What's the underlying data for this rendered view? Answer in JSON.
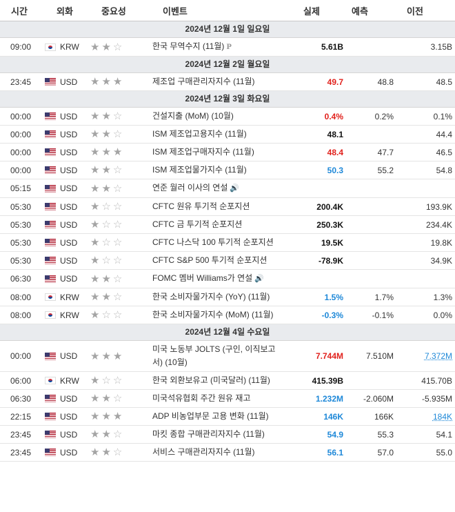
{
  "headers": {
    "time": "시간",
    "currency": "외화",
    "importance": "중요성",
    "event": "이벤트",
    "actual": "실제",
    "forecast": "예측",
    "previous": "이전"
  },
  "colors": {
    "positive": "#1e88d8",
    "negative": "#e1211c",
    "date_bg": "#e9ebee"
  },
  "sections": [
    {
      "date": "2024년 12월 1일 일요일",
      "events": [
        {
          "time": "09:00",
          "currency": "KRW",
          "flag": "kr-flag-icon",
          "stars": 2,
          "event": "한국 무역수지 (11월)",
          "badge": "P",
          "actual": "5.61B",
          "actual_color": "black",
          "forecast": "",
          "previous": "3.15B"
        }
      ]
    },
    {
      "date": "2024년 12월 2일 월요일",
      "events": [
        {
          "time": "23:45",
          "currency": "USD",
          "flag": "us-flag-icon",
          "stars": 3,
          "event": "제조업 구매관리자지수 (11월)",
          "actual": "49.7",
          "actual_color": "red",
          "forecast": "48.8",
          "previous": "48.5"
        }
      ]
    },
    {
      "date": "2024년 12월 3일 화요일",
      "events": [
        {
          "time": "00:00",
          "currency": "USD",
          "flag": "us-flag-icon",
          "stars": 2,
          "event": "건설지출 (MoM) (10월)",
          "actual": "0.4%",
          "actual_color": "red",
          "forecast": "0.2%",
          "previous": "0.1%"
        },
        {
          "time": "00:00",
          "currency": "USD",
          "flag": "us-flag-icon",
          "stars": 2,
          "event": "ISM 제조업고용지수 (11월)",
          "actual": "48.1",
          "actual_color": "black",
          "forecast": "",
          "previous": "44.4"
        },
        {
          "time": "00:00",
          "currency": "USD",
          "flag": "us-flag-icon",
          "stars": 3,
          "event": "ISM 제조업구매자지수 (11월)",
          "actual": "48.4",
          "actual_color": "red",
          "forecast": "47.7",
          "previous": "46.5"
        },
        {
          "time": "00:00",
          "currency": "USD",
          "flag": "us-flag-icon",
          "stars": 2,
          "event": "ISM 제조업물가지수 (11월)",
          "actual": "50.3",
          "actual_color": "blue",
          "forecast": "55.2",
          "previous": "54.8"
        },
        {
          "time": "05:15",
          "currency": "USD",
          "flag": "us-flag-icon",
          "stars": 2,
          "event": "연준 월러 이사의 연설",
          "speech": true,
          "actual": "",
          "actual_color": "black",
          "forecast": "",
          "previous": ""
        },
        {
          "time": "05:30",
          "currency": "USD",
          "flag": "us-flag-icon",
          "stars": 1,
          "event": "CFTC 원유 투기적 순포지션",
          "actual": "200.4K",
          "actual_color": "black",
          "forecast": "",
          "previous": "193.9K"
        },
        {
          "time": "05:30",
          "currency": "USD",
          "flag": "us-flag-icon",
          "stars": 1,
          "event": "CFTC 금 투기적 순포지션",
          "actual": "250.3K",
          "actual_color": "black",
          "forecast": "",
          "previous": "234.4K"
        },
        {
          "time": "05:30",
          "currency": "USD",
          "flag": "us-flag-icon",
          "stars": 1,
          "event": "CFTC 나스닥 100 투기적 순포지션",
          "actual": "19.5K",
          "actual_color": "black",
          "forecast": "",
          "previous": "19.8K"
        },
        {
          "time": "05:30",
          "currency": "USD",
          "flag": "us-flag-icon",
          "stars": 1,
          "event": "CFTC S&P 500 투기적 순포지션",
          "actual": "-78.9K",
          "actual_color": "black",
          "forecast": "",
          "previous": "34.9K"
        },
        {
          "time": "06:30",
          "currency": "USD",
          "flag": "us-flag-icon",
          "stars": 2,
          "event": "FOMC 멤버 Williams가 연설",
          "speech": true,
          "actual": "",
          "actual_color": "black",
          "forecast": "",
          "previous": ""
        },
        {
          "time": "08:00",
          "currency": "KRW",
          "flag": "kr-flag-icon",
          "stars": 2,
          "event": "한국 소비자물가지수 (YoY) (11월)",
          "actual": "1.5%",
          "actual_color": "blue",
          "forecast": "1.7%",
          "previous": "1.3%"
        },
        {
          "time": "08:00",
          "currency": "KRW",
          "flag": "kr-flag-icon",
          "stars": 1,
          "event": "한국 소비자물가지수 (MoM) (11월)",
          "actual": "-0.3%",
          "actual_color": "blue",
          "forecast": "-0.1%",
          "previous": "0.0%"
        }
      ]
    },
    {
      "date": "2024년 12월 4일 수요일",
      "events": [
        {
          "time": "00:00",
          "currency": "USD",
          "flag": "us-flag-icon",
          "stars": 3,
          "event": "미국 노동부 JOLTS (구인, 이직보고서) (10월)",
          "actual": "7.744M",
          "actual_color": "red",
          "forecast": "7.510M",
          "previous": "7.372M",
          "previous_link": true
        },
        {
          "time": "06:00",
          "currency": "KRW",
          "flag": "kr-flag-icon",
          "stars": 1,
          "event": "한국 외환보유고 (미국달러) (11월)",
          "actual": "415.39B",
          "actual_color": "black",
          "forecast": "",
          "previous": "415.70B"
        },
        {
          "time": "06:30",
          "currency": "USD",
          "flag": "us-flag-icon",
          "stars": 2,
          "event": "미국석유협회 주간 원유 재고",
          "actual": "1.232M",
          "actual_color": "blue",
          "forecast": "-2.060M",
          "previous": "-5.935M"
        },
        {
          "time": "22:15",
          "currency": "USD",
          "flag": "us-flag-icon",
          "stars": 3,
          "event": "ADP 비농업부문 고용 변화 (11월)",
          "actual": "146K",
          "actual_color": "blue",
          "forecast": "166K",
          "previous": "184K",
          "previous_link": true
        },
        {
          "time": "23:45",
          "currency": "USD",
          "flag": "us-flag-icon",
          "stars": 2,
          "event": "마킷 종합 구매관리자지수 (11월)",
          "actual": "54.9",
          "actual_color": "blue",
          "forecast": "55.3",
          "previous": "54.1"
        },
        {
          "time": "23:45",
          "currency": "USD",
          "flag": "us-flag-icon",
          "stars": 2,
          "event": "서비스 구매관리자지수 (11월)",
          "actual": "56.1",
          "actual_color": "blue",
          "forecast": "57.0",
          "previous": "55.0"
        }
      ]
    }
  ]
}
